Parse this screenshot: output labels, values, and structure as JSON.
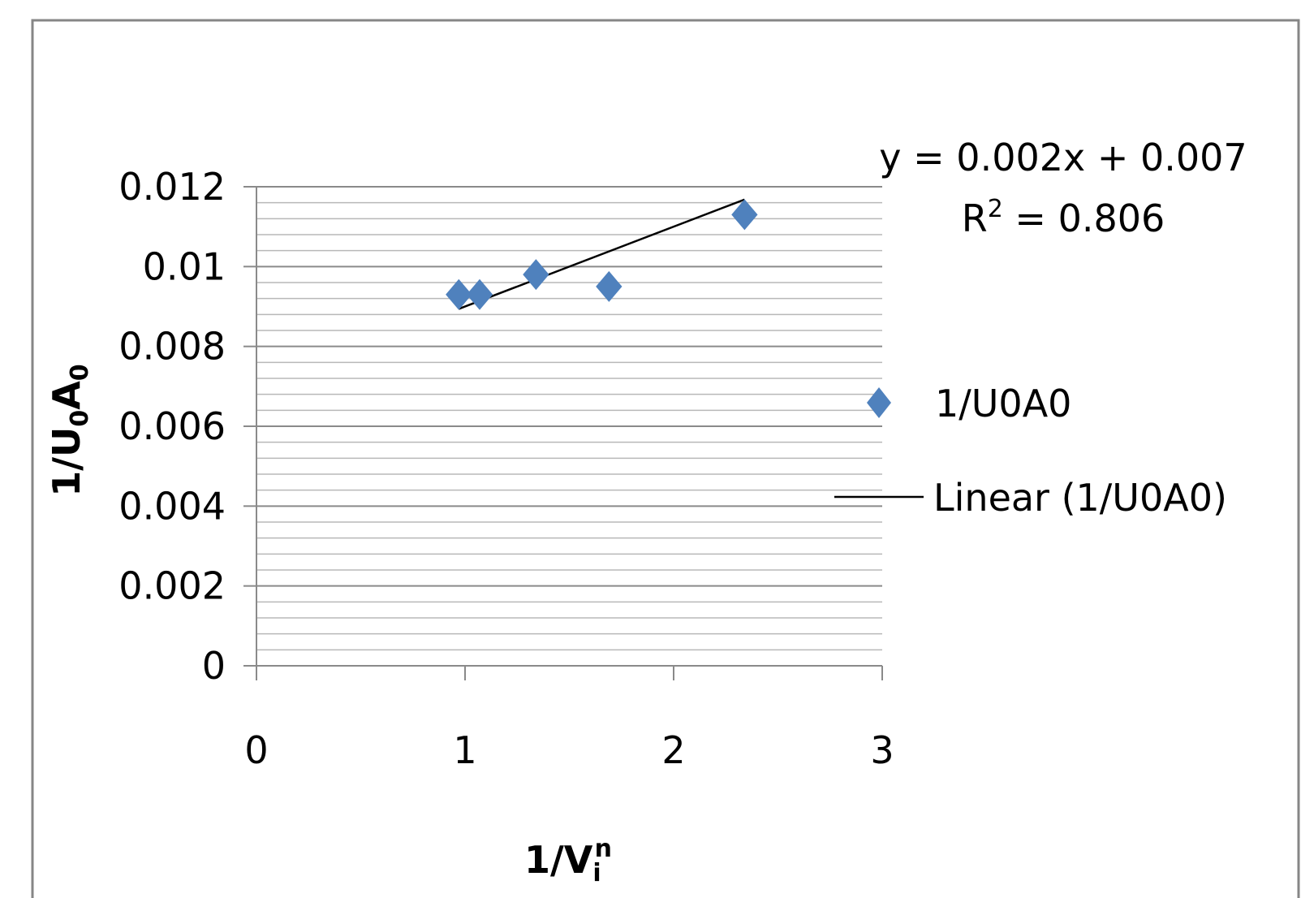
{
  "chart_data": {
    "type": "scatter",
    "xlabel": "1/Vi^n",
    "ylabel": "1/U0A0",
    "xlim": [
      0,
      3
    ],
    "ylim": [
      0,
      0.012
    ],
    "x_ticks": [
      "0",
      "1",
      "2",
      "3"
    ],
    "y_ticks": [
      "0",
      "0.002",
      "0.004",
      "0.006",
      "0.008",
      "0.01",
      "0.012"
    ],
    "grid": {
      "major": true,
      "minor": true
    },
    "legend_position": "right",
    "series": [
      {
        "name": "1/U0A0",
        "marker": "diamond",
        "color": "#4F81BD",
        "points": [
          {
            "x": 0.97,
            "y": 0.0093
          },
          {
            "x": 1.07,
            "y": 0.0093
          },
          {
            "x": 1.34,
            "y": 0.0098
          },
          {
            "x": 1.69,
            "y": 0.0095
          },
          {
            "x": 2.34,
            "y": 0.0113
          }
        ]
      }
    ],
    "trendline": {
      "name": "Linear (1/U0A0)",
      "color": "#000000",
      "slope": 0.002,
      "intercept": 0.007,
      "x_range": [
        0.97,
        2.34
      ]
    },
    "annotation": {
      "equation": "y = 0.002x + 0.007",
      "r2_prefix": "R",
      "r2_sup": "2",
      "r2_value": " = 0.806"
    }
  }
}
